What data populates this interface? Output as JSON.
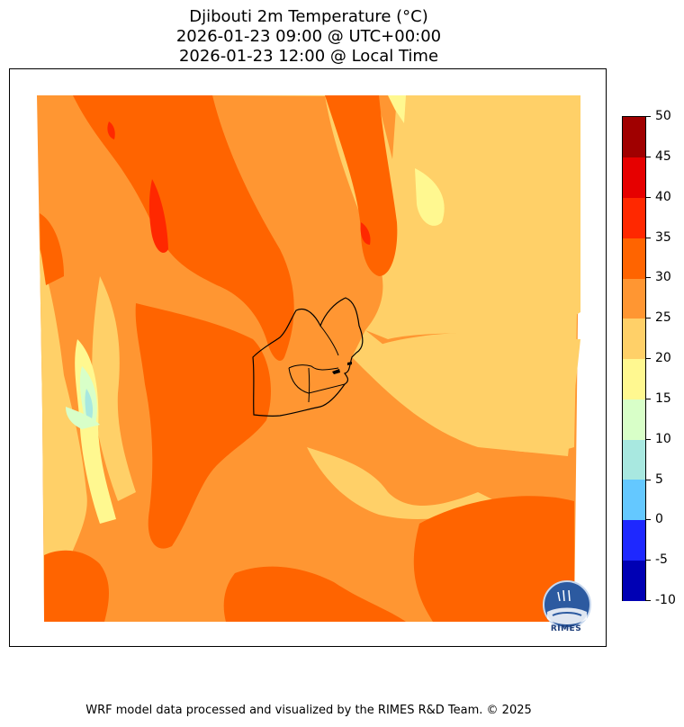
{
  "title": {
    "line1": "Djibouti 2m Temperature (°C)",
    "line2": "2026-01-23 09:00 @ UTC+00:00",
    "line3": "2026-01-23 12:00 @ Local Time"
  },
  "colorbar": {
    "levels": [
      -10,
      -5,
      0,
      5,
      10,
      15,
      20,
      25,
      30,
      35,
      40,
      45,
      50
    ],
    "tick_labels": [
      "-10",
      "-5",
      "0",
      "5",
      "10",
      "15",
      "20",
      "25",
      "30",
      "35",
      "40",
      "45",
      "50"
    ],
    "colors": [
      "#0000b4",
      "#1e28ff",
      "#64c8ff",
      "#a8e8e0",
      "#d8ffc8",
      "#fff890",
      "#ffd068",
      "#ff9632",
      "#ff6400",
      "#ff2800",
      "#e60000",
      "#a00000"
    ]
  },
  "map": {
    "dominant_bands_degC": [
      "20-25",
      "25-30",
      "30-35"
    ],
    "logo_text": "RIMES"
  },
  "footer": "WRF model data processed and visualized by the RIMES R&D Team. © 2025"
}
